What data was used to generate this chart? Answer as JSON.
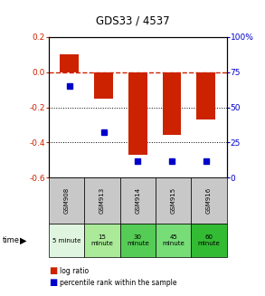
{
  "title": "GDS33 / 4537",
  "samples": [
    "GSM908",
    "GSM913",
    "GSM914",
    "GSM915",
    "GSM916"
  ],
  "time_labels": [
    "5 minute",
    "15\nminute",
    "30\nminute",
    "45\nminute",
    "60\nminute"
  ],
  "log_ratios": [
    0.1,
    -0.15,
    -0.47,
    -0.355,
    -0.27
  ],
  "percentile_ranks": [
    65,
    32,
    12,
    12,
    12
  ],
  "ylim_left": [
    -0.6,
    0.2
  ],
  "ylim_right": [
    0,
    100
  ],
  "left_yticks": [
    -0.6,
    -0.4,
    -0.2,
    0.0,
    0.2
  ],
  "right_yticks": [
    0,
    25,
    50,
    75,
    100
  ],
  "bar_color": "#cc2200",
  "dot_color": "#0000cc",
  "dashed_line_color": "#cc2200",
  "grid_line_color": "#000000",
  "cell_colors_top": [
    "#c8c8c8",
    "#c8c8c8",
    "#c8c8c8",
    "#c8c8c8",
    "#c8c8c8"
  ],
  "cell_colors_bottom": [
    "#e0f5e0",
    "#aaea99",
    "#55cc55",
    "#77dd77",
    "#33bb33"
  ],
  "legend_log_ratio_color": "#cc2200",
  "legend_percentile_color": "#0000cc",
  "bar_width": 0.55
}
